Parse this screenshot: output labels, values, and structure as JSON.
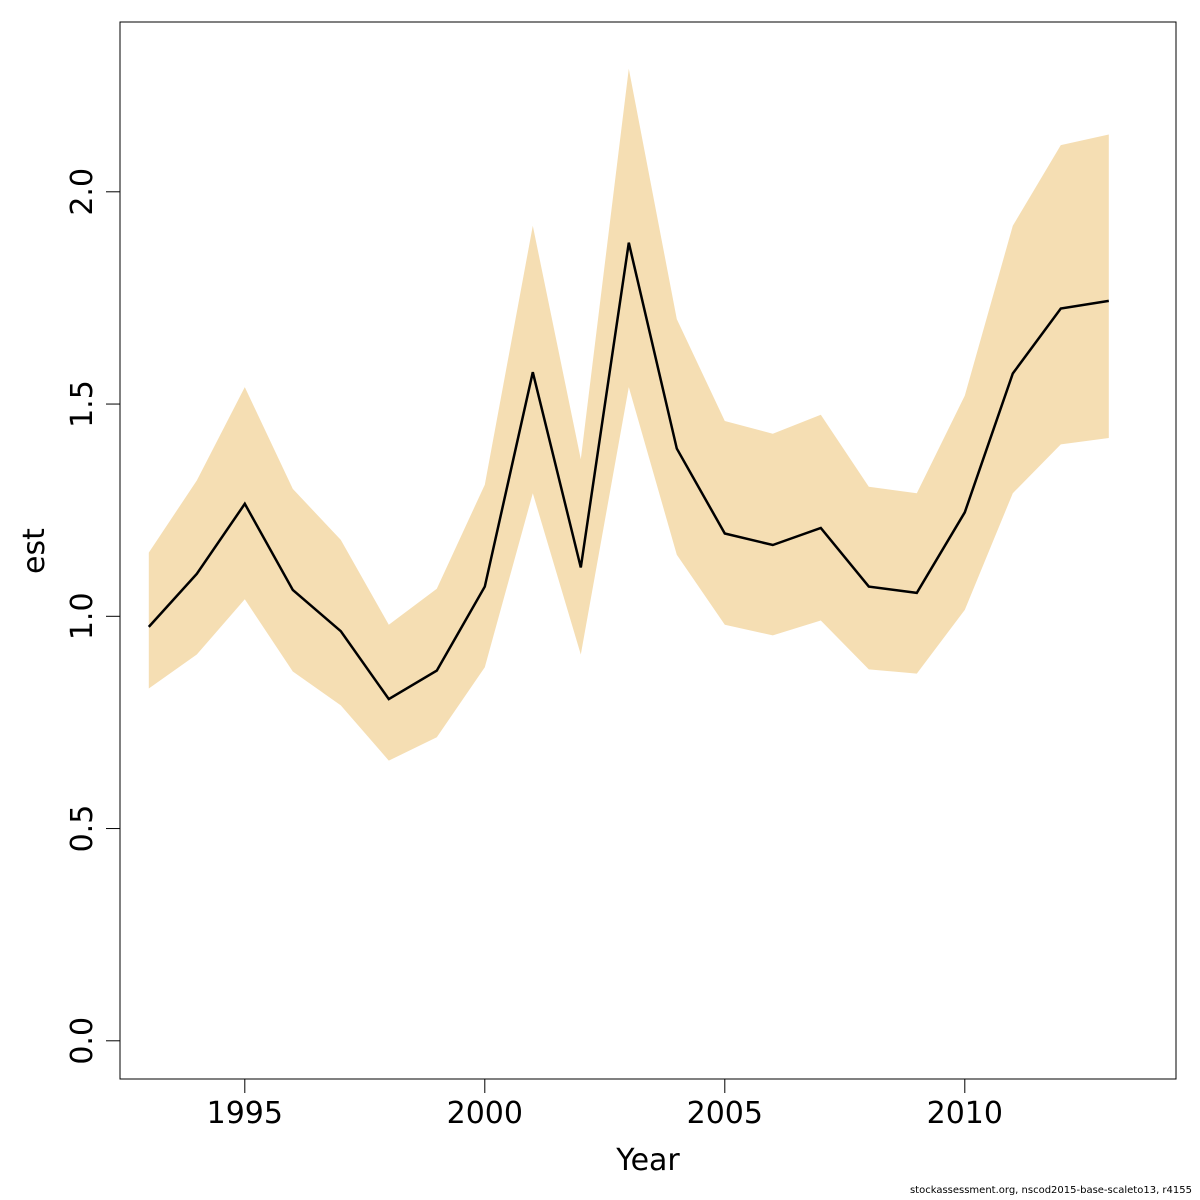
{
  "chart_data": {
    "type": "line",
    "title": "",
    "xlabel": "Year",
    "ylabel": "est",
    "xlim": [
      1992.4,
      2014.4
    ],
    "ylim": [
      -0.09,
      2.4
    ],
    "x_ticks": [
      1995,
      2000,
      2005,
      2010
    ],
    "y_ticks": [
      "0.0",
      "0.5",
      "1.0",
      "1.5",
      "2.0"
    ],
    "band_color": "#F5DEB3",
    "line_color": "#000000",
    "x": [
      1993,
      1994,
      1995,
      1996,
      1997,
      1998,
      1999,
      2000,
      2001,
      2002,
      2003,
      2004,
      2005,
      2006,
      2007,
      2008,
      2009,
      2010,
      2011,
      2012,
      2013
    ],
    "series": [
      {
        "values": [
          0.975,
          1.1,
          1.265,
          1.062,
          0.965,
          0.805,
          0.872,
          1.07,
          1.575,
          1.115,
          1.88,
          1.395,
          1.195,
          1.168,
          1.208,
          1.07,
          1.055,
          1.245,
          1.572,
          1.725,
          1.743
        ]
      }
    ],
    "band": {
      "lower": [
        0.83,
        0.91,
        1.04,
        0.87,
        0.79,
        0.66,
        0.715,
        0.88,
        1.29,
        0.91,
        1.54,
        1.145,
        0.98,
        0.955,
        0.99,
        0.875,
        0.865,
        1.015,
        1.29,
        1.405,
        1.42
      ],
      "upper": [
        1.15,
        1.32,
        1.54,
        1.3,
        1.18,
        0.98,
        1.065,
        1.31,
        1.92,
        1.37,
        2.29,
        1.7,
        1.46,
        1.43,
        1.475,
        1.305,
        1.29,
        1.52,
        1.92,
        2.11,
        2.135
      ]
    }
  },
  "footer": {
    "note": "stockassessment.org, nscod2015-base-scaleto13, r4155"
  }
}
